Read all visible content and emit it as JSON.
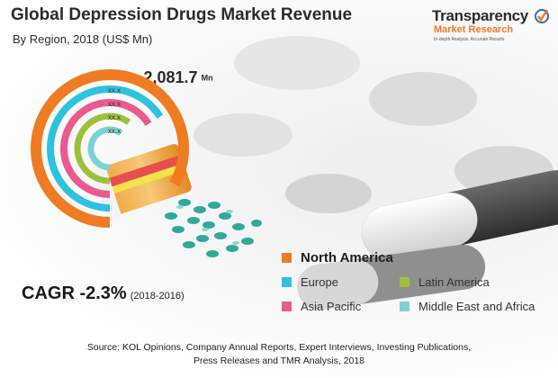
{
  "header": {
    "title": "Global Depression Drugs Market Revenue",
    "subtitle": "By Region, 2018 (US$ Mn)"
  },
  "logo": {
    "line1": "Transparency",
    "line2": "Market Research",
    "tagline": "In-depth Analysis. Accurate Results"
  },
  "total": {
    "currency": "US$",
    "value": "2,081.7",
    "unit": "Mn"
  },
  "cagr": {
    "label": "CAGR -2.3%",
    "period": "(2018-2016)"
  },
  "chart_data": {
    "type": "radial-bar",
    "title": "Global Depression Drugs Market Revenue",
    "subtitle": "By Region, 2018 (US$ Mn)",
    "total": 2081.7,
    "series": [
      {
        "name": "North America",
        "color": "#f07b22",
        "share": 0.83,
        "value_label": ""
      },
      {
        "name": "Europe",
        "color": "#2fc1e0",
        "share": 0.66,
        "value_label": "xx.x"
      },
      {
        "name": "Asia Pacific",
        "color": "#ea5a8e",
        "share": 0.66,
        "value_label": "xx.x"
      },
      {
        "name": "Latin America",
        "color": "#9bc13c",
        "share": 0.6,
        "value_label": "xx.x"
      },
      {
        "name": "Middle East and Africa",
        "color": "#7ad2d4",
        "share": 0.6,
        "value_label": "xx.x"
      }
    ]
  },
  "source": {
    "line1": "Source: KOL Opinions, Company Annual Reports, Expert Interviews, Investing Publications,",
    "line2": "Press Releases and TMR Analysis, 2018"
  }
}
